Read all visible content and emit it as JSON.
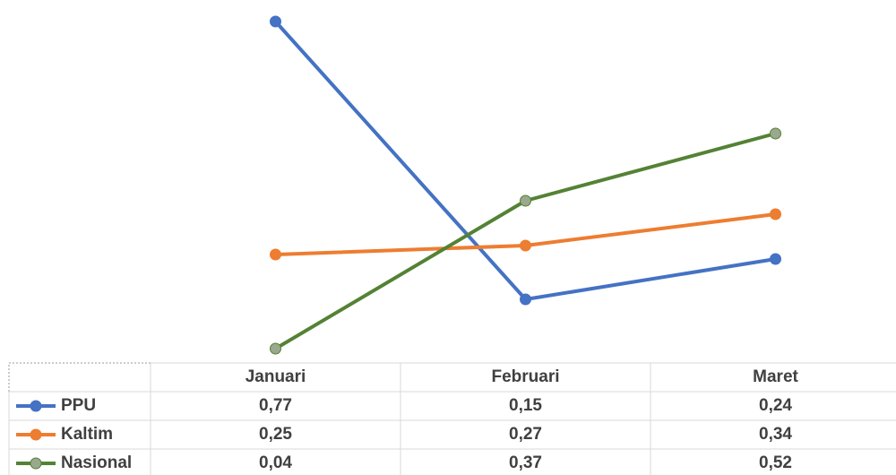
{
  "chart_data": {
    "type": "line",
    "categories": [
      "Januari",
      "Februari",
      "Maret"
    ],
    "series": [
      {
        "name": "PPU",
        "color": "#4472c4",
        "marker_fill": "#4472c4",
        "values": [
          0.77,
          0.15,
          0.24
        ],
        "value_labels": [
          "0,77",
          "0,15",
          "0,24"
        ]
      },
      {
        "name": "Kaltim",
        "color": "#ed7d31",
        "marker_fill": "#ed7d31",
        "values": [
          0.25,
          0.27,
          0.34
        ],
        "value_labels": [
          "0,25",
          "0,27",
          "0,34"
        ]
      },
      {
        "name": "Nasional",
        "color": "#548235",
        "marker_fill": "#9aa88e",
        "values": [
          0.04,
          0.37,
          0.52
        ],
        "value_labels": [
          "0,04",
          "0,37",
          "0,52"
        ]
      }
    ],
    "ylim": [
      0,
      0.8
    ]
  }
}
